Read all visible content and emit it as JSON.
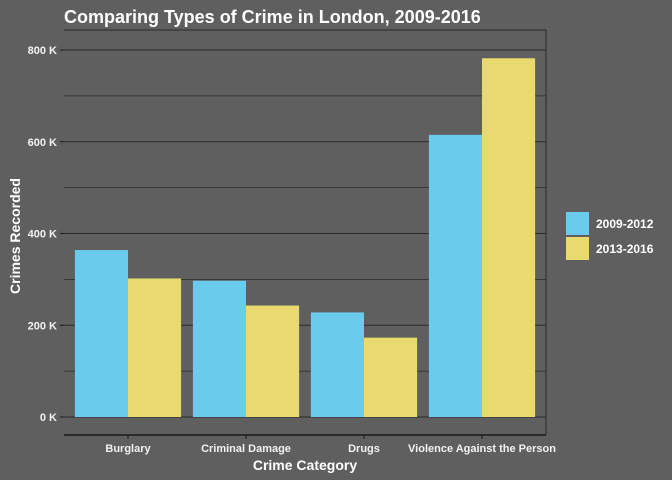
{
  "chart_data": {
    "type": "bar",
    "title": "Comparing Types of Crime in London, 2009-2016",
    "xlabel": "Crime Category",
    "ylabel": "Crimes Recorded",
    "categories": [
      "Burglary",
      "Criminal Damage",
      "Drugs",
      "Violence Against the Person"
    ],
    "series": [
      {
        "name": "2009-2012",
        "color": "#6bcbec",
        "values": [
          364000,
          297000,
          228000,
          615000
        ]
      },
      {
        "name": "2013-2016",
        "color": "#e8da6e",
        "values": [
          302000,
          243000,
          173000,
          782000
        ]
      }
    ],
    "ylim": [
      0,
      820000
    ],
    "yticks": [
      0,
      200000,
      400000,
      600000,
      800000
    ],
    "ytick_labels": [
      "0 K",
      "200 K",
      "400 K",
      "600 K",
      "800 K"
    ],
    "grid": true,
    "legend_position": "right",
    "colors": {
      "background": "#5f5f5f",
      "gridline": "#2a2a2a"
    }
  }
}
